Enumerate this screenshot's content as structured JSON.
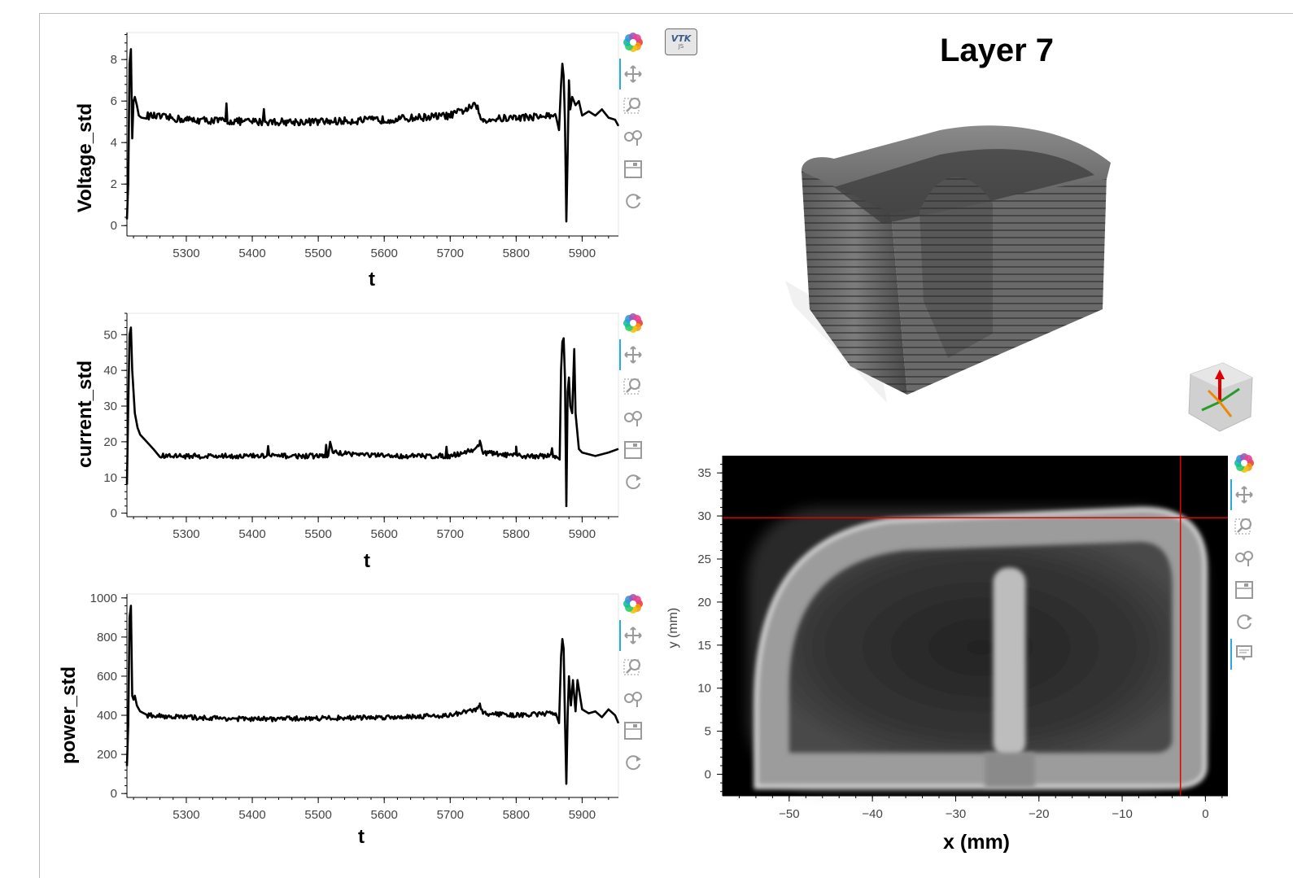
{
  "frame": {
    "background": "#ffffff",
    "border": "#bdbdbd"
  },
  "toolbar": {
    "items": [
      {
        "name": "bokeh-logo-icon",
        "label": "Bokeh"
      },
      {
        "name": "pan-icon",
        "label": "Pan"
      },
      {
        "name": "box-zoom-icon",
        "label": "Box Zoom"
      },
      {
        "name": "wheel-zoom-icon",
        "label": "Wheel Zoom"
      },
      {
        "name": "save-icon",
        "label": "Save"
      },
      {
        "name": "reset-icon",
        "label": "Reset"
      }
    ],
    "hover_icon": "hover-icon",
    "active_color": "#26aae1"
  },
  "vtk_badge": {
    "line1": "VTK",
    "line2": "JS"
  },
  "layer_title": "Layer 7",
  "chart_data": [
    {
      "type": "line",
      "ylabel": "Voltage_std",
      "xlabel": "t",
      "xlim": [
        5210,
        5955
      ],
      "ylim": [
        -0.5,
        9.3
      ],
      "xticks": [
        5300,
        5400,
        5500,
        5600,
        5700,
        5800,
        5900
      ],
      "yticks": [
        0,
        2,
        4,
        6,
        8
      ],
      "baseline": 5.1,
      "noise": 0.18,
      "line_color": "#000000",
      "x": [
        5210,
        5212,
        5214,
        5216,
        5218,
        5220,
        5222,
        5225,
        5228,
        5232,
        5240,
        5300,
        5400,
        5500,
        5600,
        5700,
        5740,
        5745,
        5750,
        5800,
        5860,
        5865,
        5868,
        5870,
        5872,
        5874,
        5876,
        5878,
        5880,
        5882,
        5885,
        5890,
        5895,
        5900,
        5910,
        5920,
        5930,
        5940,
        5950,
        5955
      ],
      "y": [
        0.3,
        2.0,
        7.8,
        8.5,
        4.2,
        6.0,
        6.2,
        5.8,
        5.3,
        5.2,
        5.3,
        5.1,
        5.0,
        5.0,
        5.1,
        5.3,
        5.8,
        5.2,
        5.1,
        5.2,
        5.3,
        4.6,
        6.8,
        7.8,
        7.2,
        5.0,
        0.2,
        3.5,
        7.0,
        5.6,
        6.2,
        5.8,
        6.0,
        5.3,
        5.5,
        5.3,
        5.6,
        5.2,
        5.1,
        4.8
      ],
      "noise_range": [
        5240,
        5860
      ]
    },
    {
      "type": "line",
      "ylabel": "current_std",
      "xlabel": "t",
      "xlim": [
        5210,
        5955
      ],
      "ylim": [
        -1,
        56
      ],
      "xticks": [
        5300,
        5400,
        5500,
        5600,
        5700,
        5800,
        5900
      ],
      "yticks": [
        0,
        10,
        20,
        30,
        40,
        50
      ],
      "baseline": 16,
      "noise": 0.7,
      "line_color": "#000000",
      "x": [
        5210,
        5212,
        5214,
        5216,
        5218,
        5220,
        5222,
        5226,
        5230,
        5240,
        5250,
        5260,
        5300,
        5400,
        5515,
        5518,
        5522,
        5600,
        5700,
        5740,
        5745,
        5750,
        5800,
        5860,
        5866,
        5868,
        5870,
        5872,
        5874,
        5876,
        5878,
        5880,
        5882,
        5885,
        5888,
        5890,
        5895,
        5900,
        5920,
        5940,
        5955
      ],
      "y": [
        8,
        30,
        50,
        52,
        40,
        34,
        28,
        24,
        22,
        20,
        18,
        16,
        16,
        16,
        16,
        20,
        17,
        16,
        16,
        18,
        20,
        17,
        16,
        16,
        15,
        40,
        48,
        49,
        38,
        2,
        34,
        38,
        30,
        28,
        46,
        28,
        18,
        17,
        16,
        17,
        18
      ],
      "noise_range": [
        5260,
        5860
      ]
    },
    {
      "type": "line",
      "ylabel": "power_std",
      "xlabel": "t",
      "xlim": [
        5210,
        5955
      ],
      "ylim": [
        -20,
        1020
      ],
      "xticks": [
        5300,
        5400,
        5500,
        5600,
        5700,
        5800,
        5900
      ],
      "yticks": [
        0,
        200,
        400,
        600,
        800,
        1000
      ],
      "baseline": 385,
      "noise": 12,
      "line_color": "#000000",
      "x": [
        5210,
        5212,
        5214,
        5216,
        5218,
        5220,
        5222,
        5225,
        5230,
        5240,
        5300,
        5400,
        5500,
        5600,
        5700,
        5740,
        5745,
        5750,
        5800,
        5860,
        5865,
        5868,
        5870,
        5872,
        5874,
        5876,
        5878,
        5880,
        5883,
        5886,
        5890,
        5893,
        5900,
        5910,
        5920,
        5930,
        5940,
        5950,
        5955
      ],
      "y": [
        140,
        350,
        900,
        960,
        500,
        480,
        500,
        450,
        420,
        400,
        390,
        380,
        385,
        390,
        400,
        430,
        450,
        410,
        400,
        410,
        360,
        700,
        790,
        740,
        380,
        50,
        400,
        600,
        450,
        580,
        420,
        580,
        430,
        410,
        420,
        390,
        430,
        400,
        360
      ],
      "noise_range": [
        5240,
        5860
      ]
    },
    {
      "type": "heatmap",
      "xlabel": "x (mm)",
      "ylabel": "y (mm)",
      "xlim": [
        -58,
        2.7
      ],
      "ylim": [
        -2.5,
        37
      ],
      "xticks": [
        -50,
        -40,
        -30,
        -20,
        -10,
        0
      ],
      "yticks": [
        0,
        5,
        10,
        15,
        20,
        25,
        30,
        35
      ],
      "crosshair": {
        "x": -3,
        "y": 29.8,
        "color": "#e00000"
      },
      "background": "#000000"
    }
  ]
}
